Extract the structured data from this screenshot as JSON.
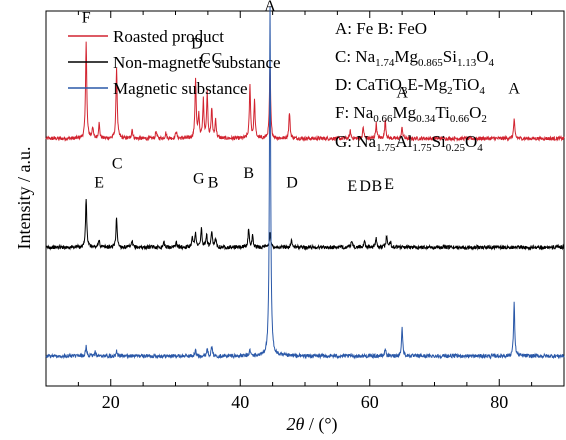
{
  "chart_data": {
    "type": "line",
    "xlabel_theta": "2θ",
    "xlabel_unit": " / (°)",
    "ylabel": "Intensity / a.u.",
    "xlim": [
      10,
      90
    ],
    "xticks": [
      "20",
      "40",
      "60",
      "80"
    ],
    "grid": false,
    "legend_placement": "top-left",
    "legend": [
      {
        "name": "Roasted product",
        "color": "#d22430"
      },
      {
        "name": "Non-magnetic substance",
        "color": "#000000"
      },
      {
        "name": "Magnetic substance",
        "color": "#2a58a8"
      }
    ],
    "phases": [
      {
        "id": "phase-a-b",
        "parts": [
          [
            "A: Fe B: FeO",
            ""
          ]
        ]
      },
      {
        "id": "phase-c",
        "parts": [
          [
            "C: Na",
            ""
          ],
          [
            "1.74",
            "sub"
          ],
          [
            "Mg",
            ""
          ],
          [
            "0.865",
            "sub"
          ],
          [
            "Si",
            ""
          ],
          [
            "1.13",
            "sub"
          ],
          [
            "O",
            ""
          ],
          [
            "4",
            "sub"
          ]
        ]
      },
      {
        "id": "phase-d",
        "parts": [
          [
            "D: CaTiO",
            ""
          ],
          [
            "3",
            "sub"
          ],
          [
            "E-Mg",
            ""
          ],
          [
            "2",
            "sub"
          ],
          [
            "TiO",
            ""
          ],
          [
            "4",
            "sub"
          ]
        ]
      },
      {
        "id": "phase-f",
        "parts": [
          [
            "F: Na",
            ""
          ],
          [
            "0.66",
            "sub"
          ],
          [
            "Mg",
            ""
          ],
          [
            "0.34",
            "sub"
          ],
          [
            "Ti",
            ""
          ],
          [
            "0.66",
            "sub"
          ],
          [
            "O",
            ""
          ],
          [
            "2",
            "sub"
          ]
        ]
      },
      {
        "id": "phase-g",
        "parts": [
          [
            "G: Na",
            ""
          ],
          [
            "1.75",
            "sub"
          ],
          [
            "Al",
            ""
          ],
          [
            "1.75",
            "sub"
          ],
          [
            "Si",
            ""
          ],
          [
            "0.25",
            "sub"
          ],
          [
            "O",
            ""
          ],
          [
            "4",
            "sub"
          ]
        ]
      }
    ],
    "peak_labels": [
      {
        "text": "F",
        "x": 16.2,
        "y": 0.97
      },
      {
        "text": "D",
        "x": 33.3,
        "y": 0.9
      },
      {
        "text": "C",
        "x": 34.6,
        "y": 0.86
      },
      {
        "text": "C",
        "x": 36.4,
        "y": 0.86
      },
      {
        "text": "A",
        "x": 44.6,
        "y": 1.0
      },
      {
        "text": "A",
        "x": 65.0,
        "y": 0.77
      },
      {
        "text": "A",
        "x": 82.3,
        "y": 0.78
      },
      {
        "text": "E",
        "x": 18.2,
        "y": 0.53
      },
      {
        "text": "C",
        "x": 21.0,
        "y": 0.58
      },
      {
        "text": "G",
        "x": 33.6,
        "y": 0.54
      },
      {
        "text": "B",
        "x": 35.8,
        "y": 0.53
      },
      {
        "text": "B",
        "x": 41.3,
        "y": 0.555
      },
      {
        "text": "D",
        "x": 48.0,
        "y": 0.53
      },
      {
        "text": "E",
        "x": 57.3,
        "y": 0.52
      },
      {
        "text": "D",
        "x": 59.3,
        "y": 0.52
      },
      {
        "text": "B",
        "x": 61.1,
        "y": 0.52
      },
      {
        "text": "E",
        "x": 63.0,
        "y": 0.525
      }
    ],
    "series": [
      {
        "name": "Roasted product",
        "color": "#d22430",
        "baseline": 0.66,
        "noise": 0.005,
        "peaks": [
          [
            16.2,
            0.26
          ],
          [
            17.2,
            0.03
          ],
          [
            18.2,
            0.04
          ],
          [
            20.9,
            0.19
          ],
          [
            23.3,
            0.025
          ],
          [
            27.0,
            0.02
          ],
          [
            28.5,
            0.015
          ],
          [
            30.1,
            0.02
          ],
          [
            33.1,
            0.16
          ],
          [
            33.6,
            0.06
          ],
          [
            34.3,
            0.1
          ],
          [
            34.9,
            0.12
          ],
          [
            35.6,
            0.08
          ],
          [
            36.2,
            0.05
          ],
          [
            41.5,
            0.14
          ],
          [
            42.2,
            0.1
          ],
          [
            44.6,
            0.19
          ],
          [
            47.6,
            0.07
          ],
          [
            57.0,
            0.02
          ],
          [
            59.0,
            0.03
          ],
          [
            61.0,
            0.04
          ],
          [
            62.4,
            0.05
          ],
          [
            65.0,
            0.03
          ],
          [
            82.3,
            0.05
          ]
        ]
      },
      {
        "name": "Non-magnetic substance",
        "color": "#000000",
        "baseline": 0.37,
        "noise": 0.005,
        "peaks": [
          [
            16.2,
            0.13
          ],
          [
            18.2,
            0.02
          ],
          [
            20.9,
            0.08
          ],
          [
            23.3,
            0.015
          ],
          [
            28.2,
            0.015
          ],
          [
            30.1,
            0.015
          ],
          [
            32.6,
            0.03
          ],
          [
            33.1,
            0.04
          ],
          [
            34.0,
            0.05
          ],
          [
            34.8,
            0.035
          ],
          [
            35.6,
            0.04
          ],
          [
            36.2,
            0.025
          ],
          [
            41.3,
            0.05
          ],
          [
            41.9,
            0.03
          ],
          [
            44.6,
            0.04
          ],
          [
            47.9,
            0.02
          ],
          [
            57.2,
            0.015
          ],
          [
            59.2,
            0.02
          ],
          [
            61.0,
            0.025
          ],
          [
            62.6,
            0.03
          ],
          [
            63.2,
            0.015
          ]
        ]
      },
      {
        "name": "Magnetic substance",
        "color": "#2a58a8",
        "baseline": 0.08,
        "noise": 0.005,
        "peaks": [
          [
            16.2,
            0.025
          ],
          [
            17.6,
            0.012
          ],
          [
            20.9,
            0.015
          ],
          [
            33.1,
            0.015
          ],
          [
            34.9,
            0.02
          ],
          [
            35.6,
            0.025
          ],
          [
            41.5,
            0.015
          ],
          [
            44.6,
            0.93
          ],
          [
            62.4,
            0.02
          ],
          [
            65.0,
            0.075
          ],
          [
            82.3,
            0.14
          ]
        ]
      }
    ]
  }
}
